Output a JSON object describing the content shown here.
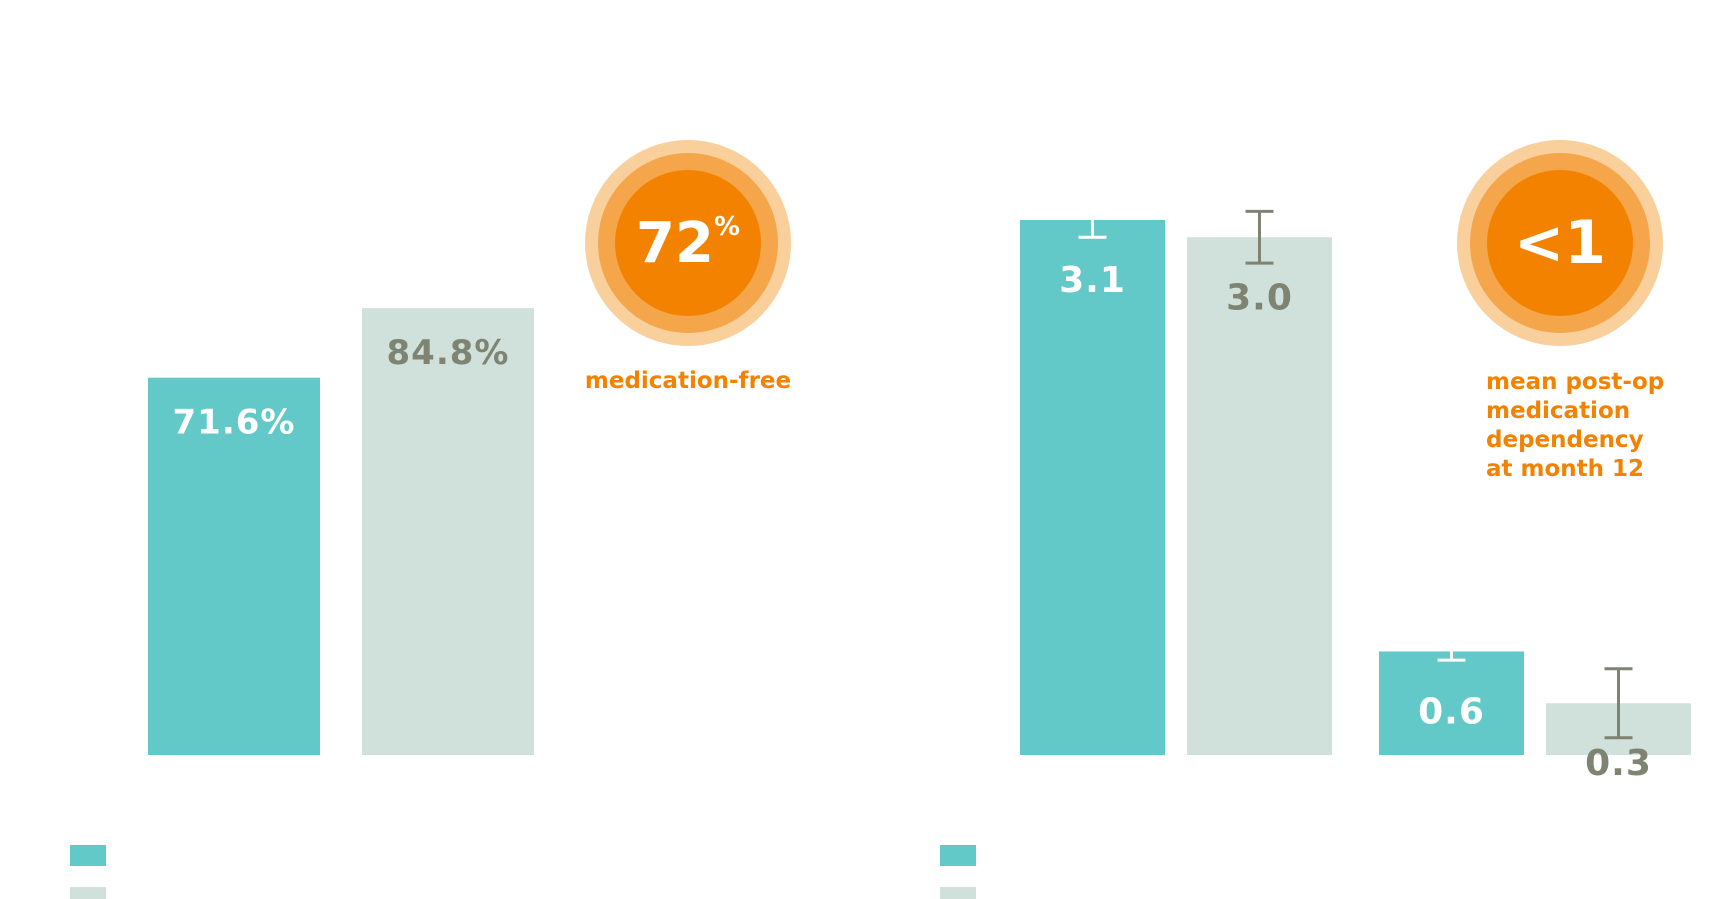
{
  "colors": {
    "treatment": "#63c9c8",
    "control": "#cfe1da",
    "treatment_text": "#ffffff",
    "control_text": "#7f8472",
    "error_bar_on_treatment": "#ffffff",
    "error_bar_on_control": "#7f8472",
    "accent": "#f28200",
    "accent_mid": "#f5a54a",
    "accent_light": "#f9cf9b"
  },
  "chart_data": [
    {
      "type": "bar",
      "categories": [
        ""
      ],
      "series": [
        {
          "values": [
            71.6
          ],
          "labels": [
            "71.6%"
          ],
          "color_key": "treatment"
        },
        {
          "values": [
            84.8
          ],
          "labels": [
            "84.8%"
          ],
          "color_key": "control"
        }
      ],
      "ylim": [
        0,
        100
      ],
      "legend": "bottom-left",
      "grid": false,
      "callout": {
        "big_value": "72",
        "big_suffix": "%",
        "caption": [
          "medication-free"
        ]
      }
    },
    {
      "type": "bar",
      "categories": [
        "",
        ""
      ],
      "series": [
        {
          "values": [
            3.1,
            0.6
          ],
          "labels": [
            "3.1",
            "0.6"
          ],
          "error": [
            0.1,
            0.05
          ],
          "color_key": "treatment"
        },
        {
          "values": [
            3.0,
            0.3
          ],
          "labels": [
            "3.0",
            "0.3"
          ],
          "error": [
            0.15,
            0.2
          ],
          "color_key": "control"
        }
      ],
      "ylim": [
        0,
        3.1
      ],
      "legend": "bottom-left",
      "grid": false,
      "callout": {
        "big_value": "<1",
        "big_suffix": "",
        "caption": [
          "mean post-op",
          "medication",
          "dependency",
          "at month 12"
        ]
      }
    }
  ]
}
